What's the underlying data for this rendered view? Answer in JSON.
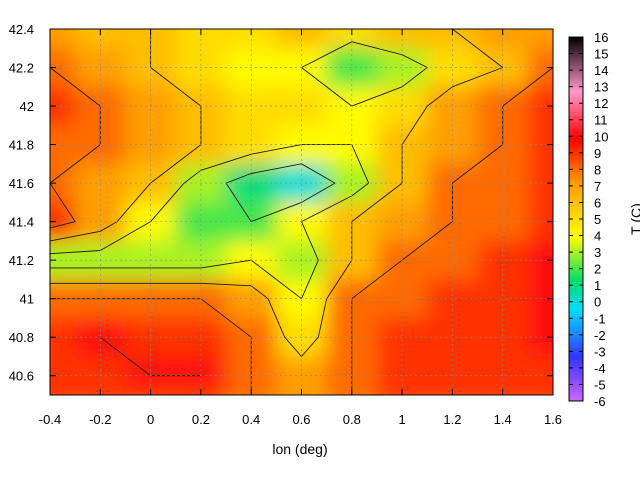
{
  "chart_data": {
    "type": "heatmap",
    "title": "",
    "xlabel": "lon (deg)",
    "ylabel": "",
    "colorbar_label": "T (C)",
    "xlim": [
      -0.4,
      1.6
    ],
    "ylim": [
      40.5,
      42.4
    ],
    "x_ticks": [
      "-0.4",
      "-0.2",
      "0",
      "0.2",
      "0.4",
      "0.6",
      "0.8",
      "1",
      "1.2",
      "1.4",
      "1.6"
    ],
    "y_ticks": [
      "40.6",
      "40.8",
      "41",
      "41.2",
      "41.4",
      "41.6",
      "41.8",
      "42",
      "42.2",
      "42.4"
    ],
    "colorbar_range": [
      -6,
      16
    ],
    "colorbar_ticks": [
      "-6",
      "-5",
      "-4",
      "-3",
      "-2",
      "-1",
      "0",
      "1",
      "2",
      "3",
      "4",
      "5",
      "6",
      "7",
      "8",
      "9",
      "10",
      "11",
      "12",
      "13",
      "14",
      "15",
      "16"
    ],
    "grid": true,
    "contours": true,
    "colormap": [
      "#cc66ff",
      "#3333ff",
      "#00ddff",
      "#00dd66",
      "#ffff00",
      "#ff9900",
      "#ff0000",
      "#ff99cc",
      "#000000"
    ],
    "field": {
      "lon": [
        -0.4,
        -0.2,
        0.0,
        0.2,
        0.4,
        0.6,
        0.8,
        1.0,
        1.2,
        1.4,
        1.6
      ],
      "lat": [
        42.4,
        42.2,
        42.0,
        41.8,
        41.6,
        41.4,
        41.2,
        41.0,
        40.8,
        40.6,
        40.5
      ],
      "values": [
        [
          7,
          6,
          6,
          5,
          5,
          6,
          5,
          6,
          6,
          7,
          7
        ],
        [
          8,
          7,
          6,
          5,
          4,
          4,
          2,
          3,
          5,
          6,
          8
        ],
        [
          9,
          8,
          7,
          6,
          5,
          5,
          4,
          5,
          7,
          8,
          9
        ],
        [
          8,
          8,
          7,
          6,
          5,
          4,
          4,
          6,
          7,
          8,
          9
        ],
        [
          8,
          7,
          6,
          3,
          1,
          0,
          3,
          6,
          8,
          8,
          9
        ],
        [
          9,
          7,
          4,
          2,
          2,
          4,
          6,
          7,
          8,
          8,
          9
        ],
        [
          3,
          3,
          3,
          3,
          4,
          3,
          6,
          8,
          8,
          9,
          10
        ],
        [
          8,
          8,
          8,
          8,
          7,
          4,
          8,
          8,
          9,
          9,
          10
        ],
        [
          9,
          10,
          9,
          9,
          8,
          5,
          8,
          9,
          9,
          9,
          10
        ],
        [
          9,
          9,
          10,
          10,
          8,
          7,
          8,
          9,
          9,
          9,
          9
        ],
        [
          9,
          9,
          9,
          9,
          8,
          7,
          8,
          9,
          9,
          9,
          9
        ]
      ]
    }
  }
}
